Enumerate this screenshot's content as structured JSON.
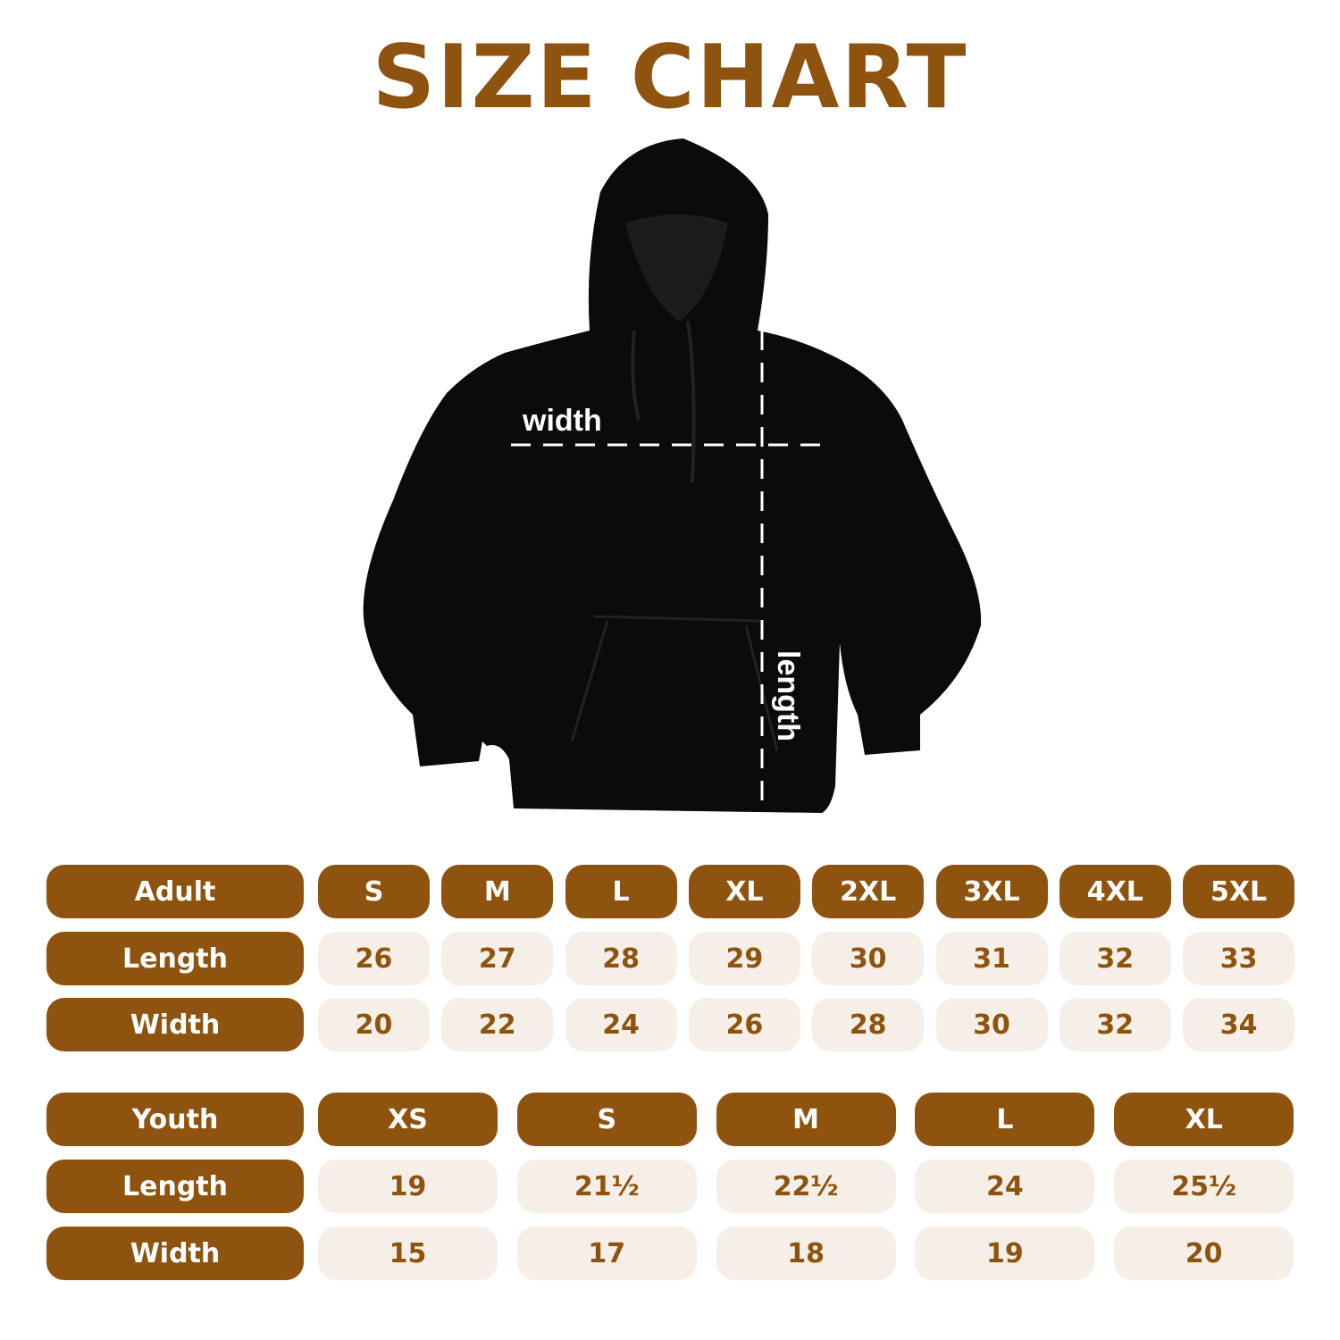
{
  "title": "SIZE CHART",
  "diagram": {
    "width_label": "width",
    "length_label": "length"
  },
  "colors": {
    "brand": "#8E530E",
    "cell_bg": "#F5EFE7",
    "garment": "#0a0a0a"
  },
  "adult": {
    "label": "Adult",
    "sizes": [
      "S",
      "M",
      "L",
      "XL",
      "2XL",
      "3XL",
      "4XL",
      "5XL"
    ],
    "rows": [
      {
        "label": "Length",
        "values": [
          "26",
          "27",
          "28",
          "29",
          "30",
          "31",
          "32",
          "33"
        ]
      },
      {
        "label": "Width",
        "values": [
          "20",
          "22",
          "24",
          "26",
          "28",
          "30",
          "32",
          "34"
        ]
      }
    ]
  },
  "youth": {
    "label": "Youth",
    "sizes": [
      "XS",
      "S",
      "M",
      "L",
      "XL"
    ],
    "rows": [
      {
        "label": "Length",
        "values": [
          "19",
          "21½",
          "22½",
          "24",
          "25½"
        ]
      },
      {
        "label": "Width",
        "values": [
          "15",
          "17",
          "18",
          "19",
          "20"
        ]
      }
    ]
  }
}
